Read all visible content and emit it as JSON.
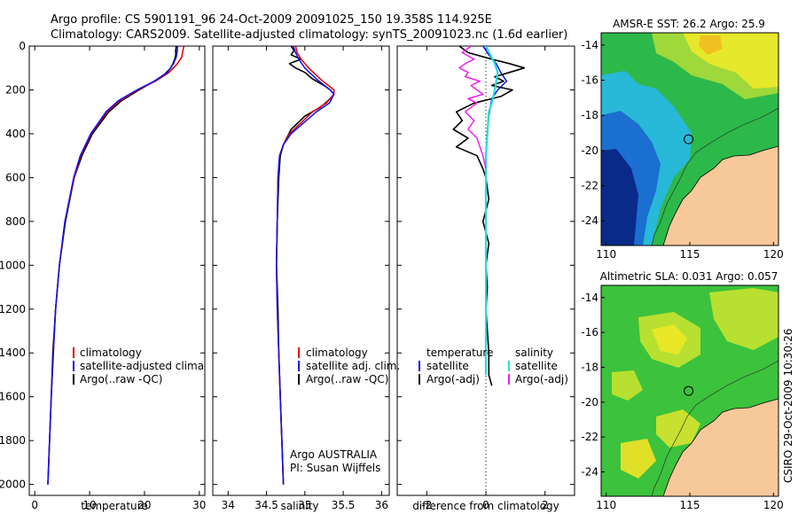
{
  "header": {
    "title_line1": "Argo profile: CS 5901191_96 24-Oct-2009 20091025_150 19.358S 114.925E",
    "title_line2": "Climatology: CARS2009. Satellite-adjusted climatology: synTS_20091023.nc (1.6d earlier)"
  },
  "footer": {
    "stamp": "CSIRO 29-Oct-2009 10:30:26"
  },
  "colors": {
    "climatology": "#dd0000",
    "satellite": "#1010ee",
    "argo": "#000000",
    "sat_salinity": "#22dddd",
    "argo_adj_salinity": "#ee22ee",
    "land": "#f7c89a"
  },
  "chart_data": [
    {
      "id": "temperature",
      "type": "line",
      "xlabel": "temperature",
      "xlim": [
        -1,
        31
      ],
      "ylim": [
        2050,
        0
      ],
      "xticks": [
        0,
        10,
        20,
        30
      ],
      "yticks": [
        0,
        200,
        400,
        600,
        800,
        1000,
        1200,
        1400,
        1600,
        1800,
        2000
      ],
      "legend": [
        "climatology",
        "satellite-adjusted climatology",
        "Argo(..raw -QC)"
      ],
      "series": [
        {
          "name": "climatology",
          "depth": [
            0,
            20,
            50,
            80,
            120,
            160,
            200,
            250,
            300,
            400,
            500,
            600,
            800,
            1000,
            1200,
            1400,
            1600,
            1800,
            2000
          ],
          "values": [
            27.2,
            27.0,
            26.8,
            26.0,
            24.5,
            22.0,
            18.8,
            15.5,
            13.2,
            10.3,
            8.4,
            7.2,
            5.5,
            4.5,
            3.8,
            3.4,
            3.0,
            2.7,
            2.4
          ]
        },
        {
          "name": "satellite",
          "depth": [
            0,
            20,
            50,
            80,
            120,
            160,
            200,
            250,
            300,
            400,
            500,
            600,
            800,
            1000,
            1200,
            1400,
            1600,
            1800,
            2000
          ],
          "values": [
            26.0,
            26.0,
            25.8,
            25.3,
            24.2,
            21.8,
            18.6,
            15.2,
            13.0,
            10.2,
            8.3,
            7.1,
            5.5,
            4.5,
            3.8,
            3.4,
            3.0,
            2.7,
            2.4
          ]
        },
        {
          "name": "argo",
          "depth": [
            0,
            20,
            40,
            60,
            80,
            100,
            130,
            160,
            200,
            250,
            300,
            400,
            500,
            600,
            800,
            1000,
            1200,
            1400,
            1600,
            1800,
            2000
          ],
          "values": [
            25.8,
            25.7,
            25.7,
            25.5,
            25.2,
            24.8,
            23.6,
            21.8,
            19.0,
            15.8,
            13.5,
            10.5,
            8.6,
            7.2,
            5.6,
            4.5,
            3.8,
            3.3,
            3.0,
            2.7,
            2.4
          ]
        }
      ]
    },
    {
      "id": "salinity",
      "type": "line",
      "xlabel": "salinity",
      "xlim": [
        33.8,
        36.1
      ],
      "ylim": [
        2050,
        0
      ],
      "xticks": [
        34,
        34.5,
        35,
        35.5,
        36
      ],
      "legend": [
        "climatology",
        "satellite adj. clim.",
        "Argo(..raw -QC)"
      ],
      "annotations": [
        "Argo AUSTRALIA",
        "PI: Susan Wijffels"
      ],
      "series": [
        {
          "name": "climatology",
          "depth": [
            0,
            30,
            60,
            100,
            150,
            200,
            220,
            260,
            300,
            400,
            450,
            500,
            600,
            800,
            1000,
            1200,
            1400,
            1600,
            1800,
            2000
          ],
          "values": [
            34.88,
            34.9,
            34.95,
            35.05,
            35.2,
            35.38,
            35.38,
            35.28,
            35.1,
            34.8,
            34.72,
            34.67,
            34.65,
            34.64,
            34.63,
            34.64,
            34.66,
            34.68,
            34.7,
            34.72
          ]
        },
        {
          "name": "satellite",
          "depth": [
            0,
            30,
            60,
            100,
            150,
            200,
            220,
            260,
            300,
            400,
            450,
            500,
            600,
            800,
            1000,
            1200,
            1400,
            1600,
            1800,
            2000
          ],
          "values": [
            34.85,
            34.88,
            34.92,
            35.0,
            35.15,
            35.33,
            35.38,
            35.32,
            35.15,
            34.82,
            34.72,
            34.67,
            34.65,
            34.64,
            34.63,
            34.64,
            34.66,
            34.68,
            34.7,
            34.72
          ]
        },
        {
          "name": "argo",
          "depth": [
            0,
            20,
            40,
            60,
            80,
            100,
            120,
            150,
            180,
            200,
            220,
            250,
            280,
            320,
            380,
            450,
            500,
            600,
            800,
            1000,
            1200,
            1400,
            1600,
            1800,
            2000
          ],
          "values": [
            34.82,
            34.86,
            34.82,
            34.95,
            34.8,
            34.88,
            35.0,
            35.1,
            35.25,
            35.33,
            35.38,
            35.3,
            35.2,
            35.0,
            34.82,
            34.72,
            34.68,
            34.66,
            34.64,
            34.63,
            34.65,
            34.66,
            34.68,
            34.7,
            34.72
          ]
        }
      ]
    },
    {
      "id": "difference",
      "type": "line",
      "xlabel": "difference from climatology",
      "xlim": [
        -3,
        3
      ],
      "ylim": [
        2050,
        0
      ],
      "xticks": [
        -2,
        0,
        2
      ],
      "legend_temperature": [
        "temperature",
        "satellite",
        "Argo(-adj)"
      ],
      "legend_salinity": [
        "salinity",
        "satellite",
        "Argo(-adj)"
      ],
      "series": [
        {
          "name": "temp-satellite",
          "depth": [
            0,
            40,
            80,
            120,
            160,
            200,
            240,
            280,
            320,
            400,
            500,
            600,
            800,
            1000,
            1200,
            1400,
            1500
          ],
          "values": [
            -0.1,
            0.1,
            0.35,
            0.5,
            0.7,
            0.4,
            0.2,
            0.15,
            0.1,
            0.05,
            0.0,
            0.0,
            0.0,
            0.0,
            0.0,
            0.0,
            0.0
          ]
        },
        {
          "name": "temp-argo",
          "depth": [
            0,
            30,
            60,
            80,
            100,
            120,
            140,
            160,
            180,
            200,
            230,
            260,
            300,
            340,
            380,
            420,
            460,
            500,
            560,
            600,
            700,
            800,
            900,
            1000,
            1100,
            1200,
            1300,
            1400,
            1500,
            1550
          ],
          "values": [
            -0.9,
            -0.6,
            0.2,
            0.8,
            1.3,
            0.8,
            0.3,
            0.6,
            0.2,
            0.9,
            0.5,
            -0.4,
            -1.0,
            -0.8,
            -1.1,
            -0.6,
            -1.0,
            -0.3,
            -0.1,
            0.0,
            0.1,
            -0.1,
            0.1,
            0.0,
            0.05,
            0.0,
            0.05,
            0.1,
            0.1,
            0.2
          ]
        },
        {
          "name": "sal-satellite",
          "depth": [
            0,
            40,
            80,
            120,
            160,
            200,
            260,
            300,
            400,
            500,
            600,
            800,
            1000,
            1200,
            1400,
            1500
          ],
          "values": [
            0.0,
            0.15,
            0.3,
            0.4,
            0.35,
            0.3,
            0.2,
            0.1,
            0.05,
            0.0,
            0.0,
            0.0,
            0.0,
            0.0,
            0.0,
            0.0
          ]
        },
        {
          "name": "sal-argo",
          "depth": [
            0,
            30,
            60,
            80,
            100,
            120,
            140,
            160,
            180,
            200,
            220,
            240,
            260,
            280,
            300,
            340,
            380,
            420,
            460,
            500,
            560
          ],
          "values": [
            -0.5,
            -0.8,
            -0.4,
            -0.7,
            -0.9,
            -0.6,
            -0.7,
            -0.2,
            -0.5,
            -0.3,
            -0.1,
            -0.6,
            -0.3,
            -0.5,
            -0.7,
            -0.4,
            -0.6,
            -0.3,
            -0.2,
            -0.1,
            0.0
          ]
        }
      ]
    },
    {
      "id": "sst-map",
      "type": "heatmap",
      "title": "AMSR-E SST: 26.2 Argo: 25.9",
      "xlim": [
        109.7,
        120.3
      ],
      "ylim": [
        -25.4,
        -13.3
      ],
      "xticks": [
        110,
        115,
        120
      ],
      "yticks": [
        -14,
        -16,
        -18,
        -20,
        -22,
        -24
      ],
      "argo_position": [
        114.925,
        -19.358
      ]
    },
    {
      "id": "sla-map",
      "type": "heatmap",
      "title": "Altimetric SLA: 0.031 Argo: 0.057",
      "xlim": [
        109.7,
        120.3
      ],
      "ylim": [
        -25.4,
        -13.3
      ],
      "xticks": [
        110,
        115,
        120
      ],
      "yticks": [
        -14,
        -16,
        -18,
        -20,
        -22,
        -24
      ],
      "argo_position": [
        114.925,
        -19.358
      ]
    }
  ]
}
